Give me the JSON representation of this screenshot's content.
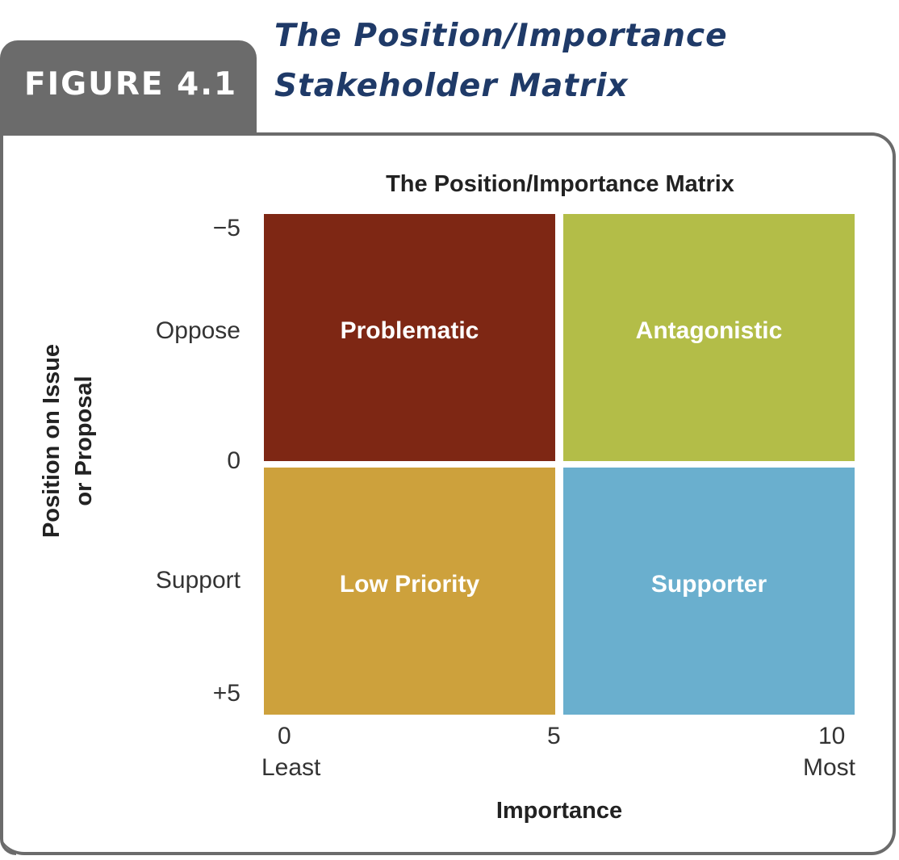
{
  "figure": {
    "label": "FIGURE 4.1",
    "title_line1": "The Position/Importance",
    "title_line2": "Stakeholder Matrix"
  },
  "chart_data": {
    "type": "matrix",
    "title": "The Position/Importance Matrix",
    "xlabel": "Importance",
    "ylabel_line1": "Position on Issue",
    "ylabel_line2": "or Proposal",
    "x_ticks": [
      {
        "value": "0",
        "label": "Least"
      },
      {
        "value": "5",
        "label": ""
      },
      {
        "value": "10",
        "label": "Most"
      }
    ],
    "y_ticks": [
      "−5",
      "Oppose",
      "0",
      "Support",
      "+5"
    ],
    "xlim": [
      0,
      10
    ],
    "ylim": [
      -5,
      5
    ],
    "quadrants": [
      {
        "label": "Problematic",
        "importance": "0–5",
        "position": "−5–0",
        "color": "#7e2714"
      },
      {
        "label": "Antagonistic",
        "importance": "5–10",
        "position": "−5–0",
        "color": "#b3bd48"
      },
      {
        "label": "Low Priority",
        "importance": "0–5",
        "position": "0–+5",
        "color": "#cda13c"
      },
      {
        "label": "Supporter",
        "importance": "5–10",
        "position": "0–+5",
        "color": "#6aafce"
      }
    ]
  }
}
